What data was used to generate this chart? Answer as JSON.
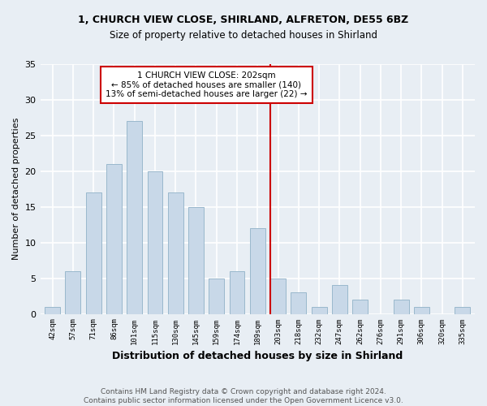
{
  "title1": "1, CHURCH VIEW CLOSE, SHIRLAND, ALFRETON, DE55 6BZ",
  "title2": "Size of property relative to detached houses in Shirland",
  "xlabel": "Distribution of detached houses by size in Shirland",
  "ylabel": "Number of detached properties",
  "bin_labels": [
    "42sqm",
    "57sqm",
    "71sqm",
    "86sqm",
    "101sqm",
    "115sqm",
    "130sqm",
    "145sqm",
    "159sqm",
    "174sqm",
    "189sqm",
    "203sqm",
    "218sqm",
    "232sqm",
    "247sqm",
    "262sqm",
    "276sqm",
    "291sqm",
    "306sqm",
    "320sqm",
    "335sqm"
  ],
  "bar_values": [
    1,
    6,
    17,
    21,
    27,
    20,
    17,
    15,
    5,
    6,
    12,
    5,
    3,
    1,
    4,
    2,
    0,
    2,
    1,
    0,
    1
  ],
  "bar_color": "#c8d8e8",
  "bar_edge_color": "#9ab8cc",
  "annotation_text": "1 CHURCH VIEW CLOSE: 202sqm\n← 85% of detached houses are smaller (140)\n13% of semi-detached houses are larger (22) →",
  "annotation_box_color": "#ffffff",
  "annotation_box_edge": "#cc0000",
  "vline_color": "#cc0000",
  "ylim": [
    0,
    35
  ],
  "yticks": [
    0,
    5,
    10,
    15,
    20,
    25,
    30,
    35
  ],
  "footer": "Contains HM Land Registry data © Crown copyright and database right 2024.\nContains public sector information licensed under the Open Government Licence v3.0.",
  "background_color": "#e8eef4",
  "plot_bg_color": "#e8eef4",
  "grid_color": "#ffffff",
  "title1_fontsize": 9,
  "title2_fontsize": 8.5,
  "xlabel_fontsize": 9,
  "ylabel_fontsize": 8
}
